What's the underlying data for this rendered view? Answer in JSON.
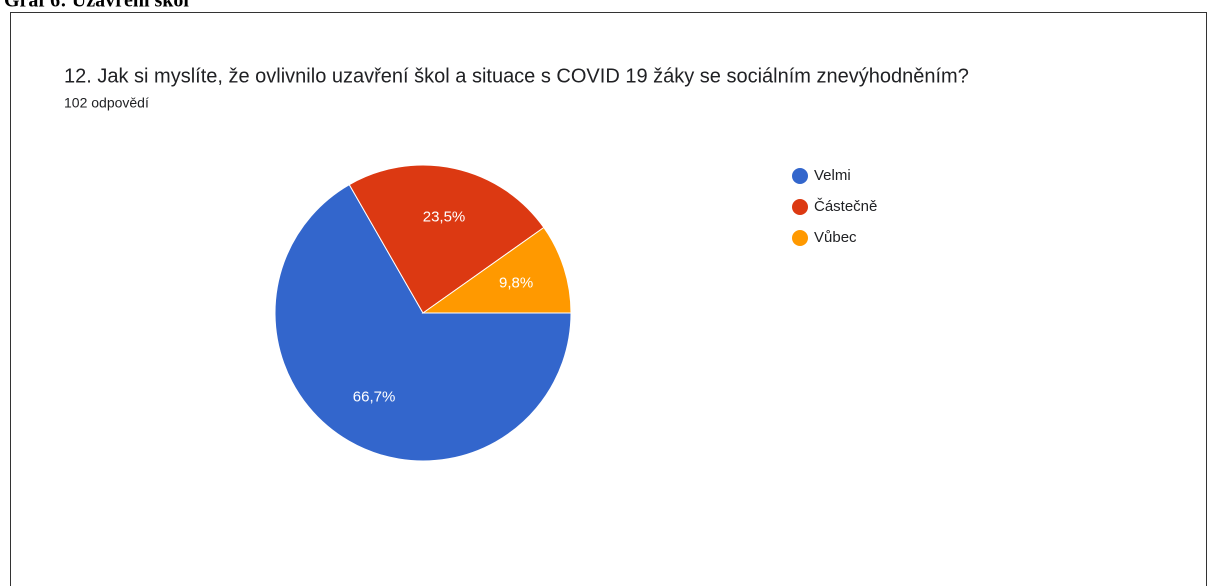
{
  "caption": "Graf 6: Uzavření škol",
  "chart_data": {
    "type": "pie",
    "title": "12. Jak si myslíte, že ovlivnilo uzavření škol a situace s COVID 19 žáky se sociálním znevýhodněním?",
    "subtitle": "102 odpovědí",
    "categories": [
      "Velmi",
      "Částečně",
      "Vůbec"
    ],
    "values": [
      66.7,
      23.5,
      9.8
    ],
    "value_labels": [
      "66,7%",
      "23,5%",
      "9,8%"
    ],
    "colors": [
      "#3366cc",
      "#dc3912",
      "#ff9900"
    ],
    "legend": "right"
  }
}
